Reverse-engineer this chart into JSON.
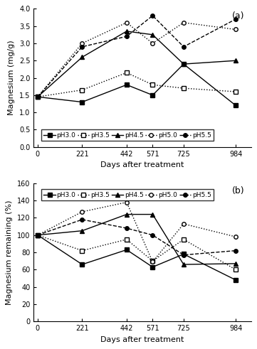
{
  "x": [
    0,
    221,
    442,
    571,
    725,
    984
  ],
  "panel_a": {
    "title": "(a)",
    "ylabel": "Magnesium (mg/g)",
    "xlabel": "Days after treatment",
    "ylim": [
      0.0,
      4.0
    ],
    "yticks": [
      0.0,
      0.5,
      1.0,
      1.5,
      2.0,
      2.5,
      3.0,
      3.5,
      4.0
    ],
    "series": {
      "pH3.0": {
        "values": [
          1.45,
          1.3,
          1.8,
          1.5,
          2.4,
          1.2
        ],
        "color": "#000000",
        "marker": "s",
        "linestyle": "-",
        "fillstyle": "full"
      },
      "pH3.5": {
        "values": [
          1.45,
          1.65,
          2.15,
          1.8,
          1.7,
          1.6
        ],
        "color": "#000000",
        "marker": "s",
        "linestyle": ":",
        "fillstyle": "none"
      },
      "pH4.5": {
        "values": [
          1.45,
          2.6,
          3.35,
          3.25,
          2.4,
          2.5
        ],
        "color": "#000000",
        "marker": "^",
        "linestyle": "-",
        "fillstyle": "full"
      },
      "pH5.0": {
        "values": [
          1.45,
          3.0,
          3.6,
          3.0,
          3.6,
          3.4
        ],
        "color": "#000000",
        "marker": "o",
        "linestyle": ":",
        "fillstyle": "none"
      },
      "pH5.5": {
        "values": [
          1.45,
          2.9,
          3.2,
          3.8,
          2.9,
          3.7
        ],
        "color": "#000000",
        "marker": "o",
        "linestyle": "--",
        "fillstyle": "full"
      }
    }
  },
  "panel_b": {
    "title": "(b)",
    "ylabel": "Magnesium remaining (%)",
    "xlabel": "Days after treatment",
    "ylim": [
      0,
      160
    ],
    "yticks": [
      0,
      20,
      40,
      60,
      80,
      100,
      120,
      140,
      160
    ],
    "series": {
      "pH3.0": {
        "values": [
          100,
          66,
          83,
          63,
          78,
          48
        ],
        "color": "#000000",
        "marker": "s",
        "linestyle": "-",
        "fillstyle": "full"
      },
      "pH3.5": {
        "values": [
          100,
          82,
          95,
          70,
          95,
          60
        ],
        "color": "#000000",
        "marker": "s",
        "linestyle": ":",
        "fillstyle": "none"
      },
      "pH4.5": {
        "values": [
          100,
          105,
          124,
          124,
          66,
          67
        ],
        "color": "#000000",
        "marker": "^",
        "linestyle": "-",
        "fillstyle": "full"
      },
      "pH5.0": {
        "values": [
          100,
          127,
          138,
          69,
          113,
          98
        ],
        "color": "#000000",
        "marker": "o",
        "linestyle": ":",
        "fillstyle": "none"
      },
      "pH5.5": {
        "values": [
          100,
          118,
          108,
          100,
          77,
          82
        ],
        "color": "#000000",
        "marker": "o",
        "linestyle": "--",
        "fillstyle": "full"
      }
    }
  }
}
